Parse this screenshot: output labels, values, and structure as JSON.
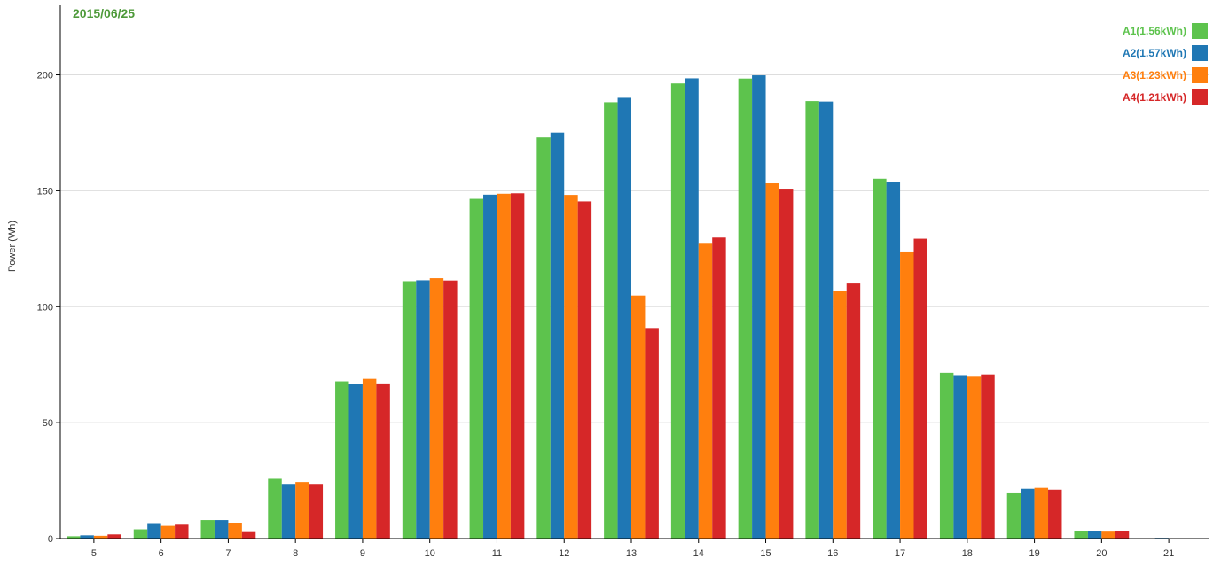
{
  "chart_data": {
    "type": "bar",
    "title": "2015/06/25",
    "title_color": "#4e9a3a",
    "ylabel": "Power (Wh)",
    "xlabel": "",
    "ylim": [
      0,
      230
    ],
    "yticks": [
      0,
      50,
      100,
      150,
      200
    ],
    "grid": true,
    "legend_position": "top-right",
    "categories": [
      "5",
      "6",
      "7",
      "8",
      "9",
      "10",
      "11",
      "12",
      "13",
      "14",
      "15",
      "16",
      "17",
      "18",
      "19",
      "20",
      "21"
    ],
    "series": [
      {
        "name": "A1(1.56kWh)",
        "color": "#5dc34d",
        "values": [
          1.0,
          4.0,
          8.0,
          25.8,
          67.8,
          111.0,
          146.5,
          173.0,
          188.2,
          196.3,
          198.4,
          188.7,
          155.2,
          71.5,
          19.5,
          3.3,
          0.1
        ]
      },
      {
        "name": "A2(1.57kWh)",
        "color": "#1f77b4",
        "values": [
          1.4,
          6.3,
          8.0,
          23.6,
          66.7,
          111.4,
          148.3,
          175.1,
          190.1,
          198.5,
          199.8,
          188.5,
          153.8,
          70.5,
          21.5,
          3.2,
          0.3
        ]
      },
      {
        "name": "A3(1.23kWh)",
        "color": "#ff7f0e",
        "values": [
          1.2,
          5.5,
          6.8,
          24.4,
          68.9,
          112.3,
          148.7,
          148.2,
          104.8,
          127.5,
          153.2,
          106.8,
          123.8,
          69.8,
          21.9,
          3.0,
          0.1
        ]
      },
      {
        "name": "A4(1.21kWh)",
        "color": "#d62728",
        "values": [
          1.8,
          6.0,
          2.8,
          23.6,
          66.9,
          111.3,
          148.9,
          145.4,
          90.8,
          129.8,
          150.9,
          110.0,
          129.3,
          70.8,
          21.1,
          3.4,
          0.1
        ]
      }
    ]
  }
}
